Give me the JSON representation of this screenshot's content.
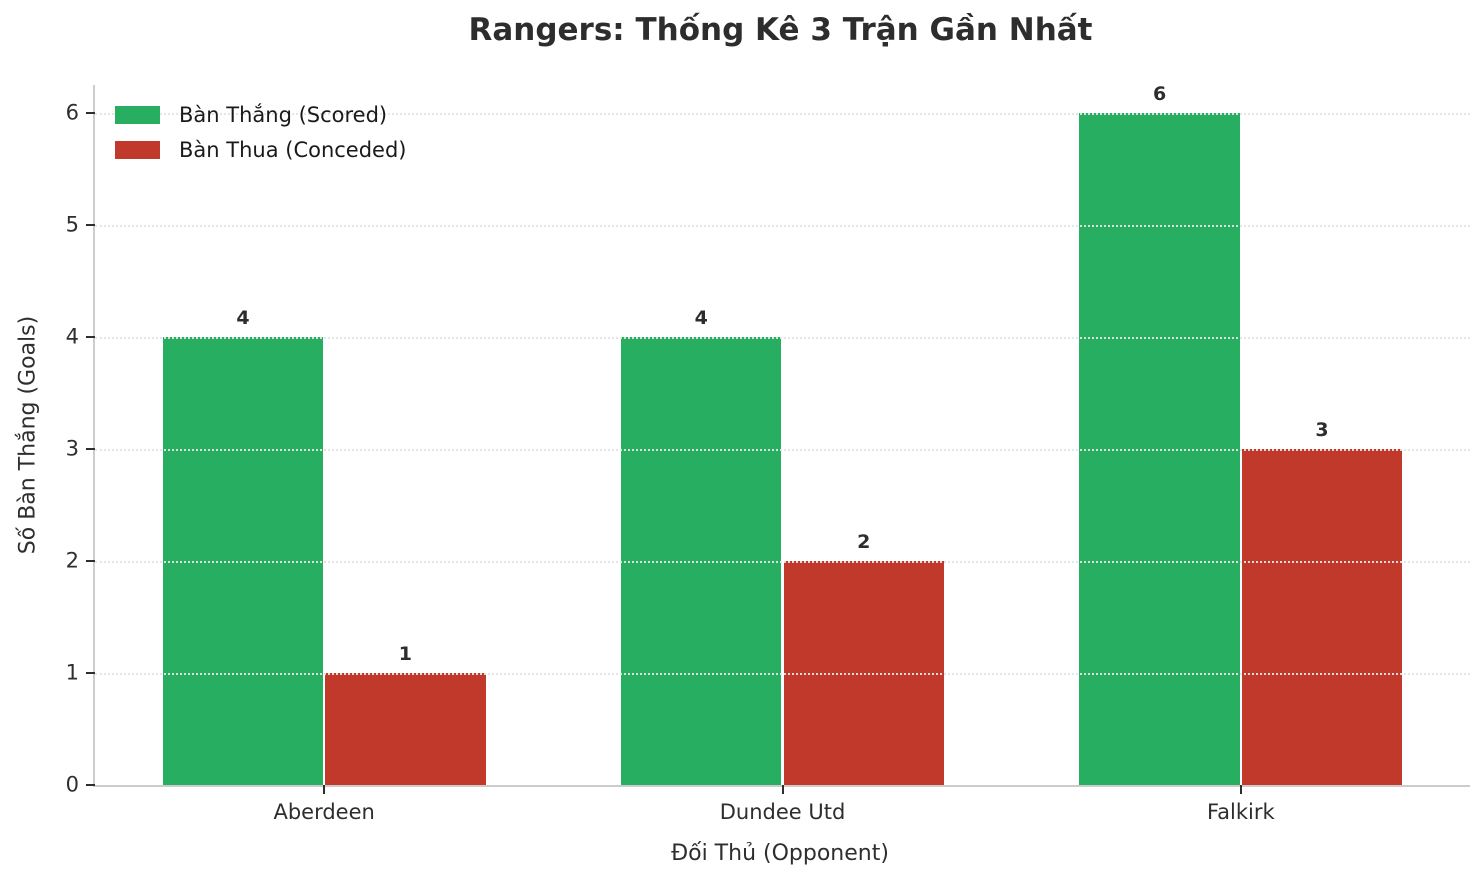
{
  "title": "Rangers: Thống Kê 3 Trận Gần Nhất",
  "chart_data": {
    "type": "bar",
    "categories": [
      "Aberdeen",
      "Dundee Utd",
      "Falkirk"
    ],
    "series": [
      {
        "name": "Bàn Thắng (Scored)",
        "color": "#27ae60",
        "values": [
          4,
          4,
          6
        ]
      },
      {
        "name": "Bàn Thua (Conceded)",
        "color": "#c0392b",
        "values": [
          1,
          2,
          3
        ]
      }
    ],
    "xlabel": "Đối Thủ (Opponent)",
    "ylabel": "Số Bàn Thắng (Goals)",
    "ylim": [
      0,
      6.25
    ],
    "yticks": [
      0,
      1,
      2,
      3,
      4,
      5,
      6
    ],
    "grid": "horizontal-dotted-over-bars",
    "legend_position": "upper-left",
    "bar_width_fraction": 0.35,
    "value_labels": [
      [
        4,
        4,
        6
      ],
      [
        1,
        2,
        3
      ]
    ]
  }
}
